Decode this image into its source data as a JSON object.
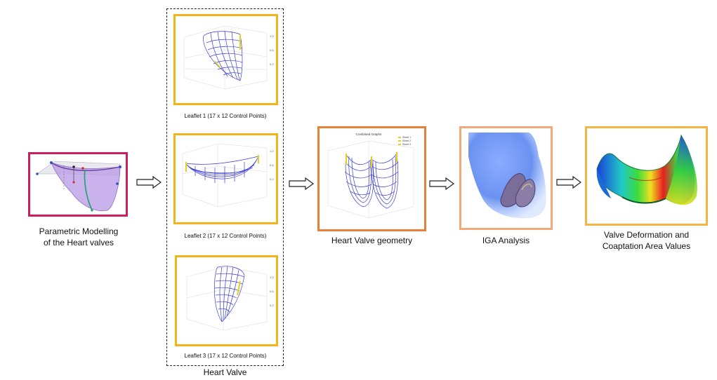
{
  "stages": {
    "parametric": {
      "line1": "Parametric Modelling",
      "line2": "of the Heart valves",
      "border_color": "#cc1f5e"
    },
    "heart_valve_group": {
      "label": "Heart Valve",
      "leaflets": [
        {
          "caption": "Leaflet 1 (17 x 12 Control Points)"
        },
        {
          "caption": "Leaflet 2 (17 x 12 Control Points)"
        },
        {
          "caption": "Leaflet 3 (17 x 12 Control Points)"
        }
      ],
      "border_color": "#f2b31b"
    },
    "geometry": {
      "label": "Heart Valve geometry",
      "plot_title": "Combined Graphs",
      "legend": [
        "Sheet 1",
        "Sheet 2",
        "Sheet 3"
      ],
      "border_color": "#e8803a"
    },
    "iga": {
      "label": "IGA Analysis",
      "border_color": "#f2a97a"
    },
    "deformation": {
      "line1": "Valve Deformation and",
      "line2": "Coaptation Area Values",
      "border_color": "#f5b544"
    }
  },
  "colors": {
    "mesh": "#3b3bd6",
    "control_points": "#e6d21a",
    "arrow": "#222222"
  }
}
